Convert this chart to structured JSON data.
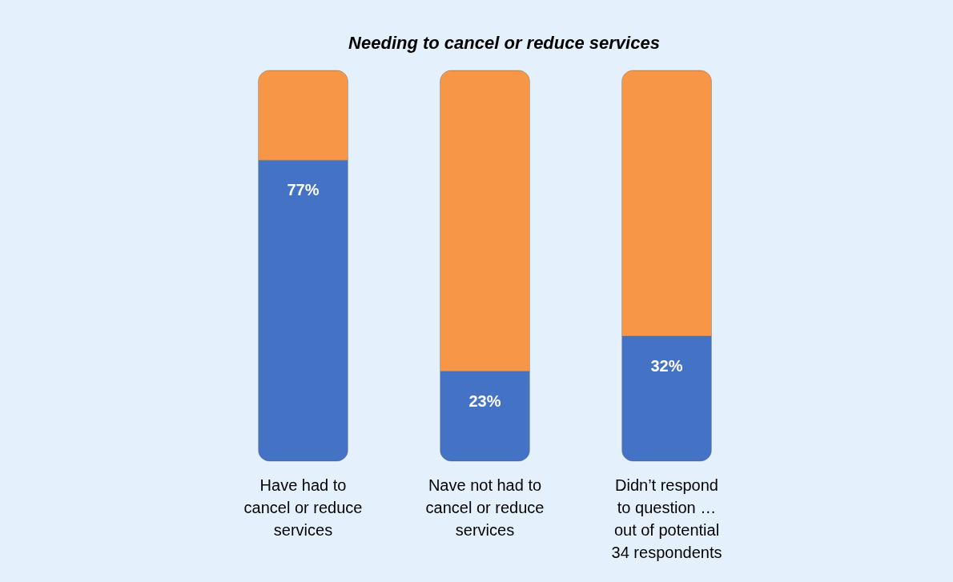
{
  "chart_data": {
    "type": "bar",
    "title": "Needing to cancel or reduce services",
    "categories": [
      "Have had to cancel or reduce services",
      "Nave not had to cancel or reduce services",
      "Didn’t respond to question … out of potential 34 respondents"
    ],
    "stacked": true,
    "legend": false,
    "tick_labels": "x",
    "ylim": [
      0,
      100
    ],
    "series": [
      {
        "color": "#4472c4",
        "values": [
          77,
          23,
          32
        ],
        "value_labels": [
          "77%",
          "23%",
          "32%"
        ]
      },
      {
        "color": "#f79646",
        "values": [
          23,
          77,
          68
        ]
      }
    ]
  }
}
